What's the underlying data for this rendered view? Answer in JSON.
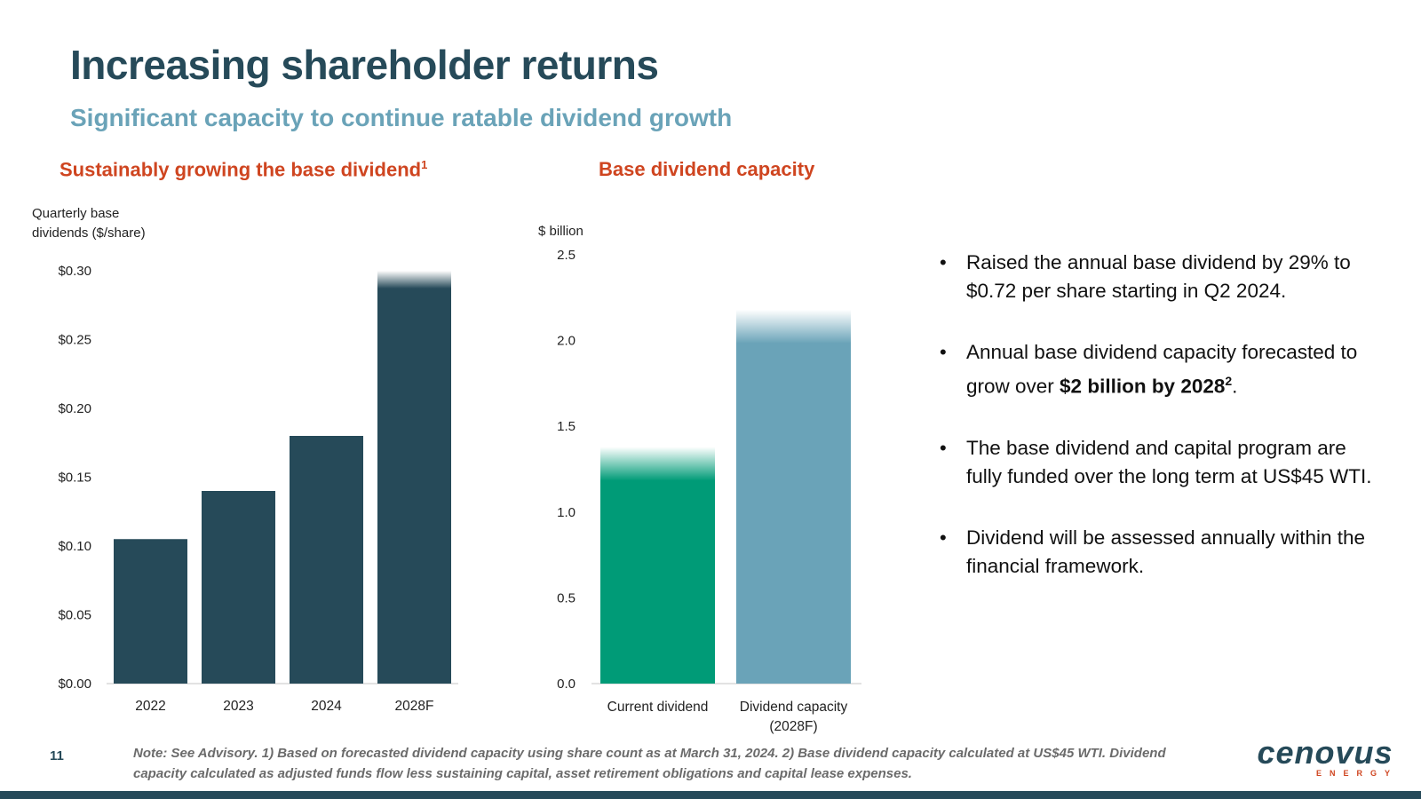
{
  "slide": {
    "title": "Increasing shareholder returns",
    "subtitle": "Significant capacity to continue ratable dividend growth",
    "page_number": "11"
  },
  "chart_data": [
    {
      "type": "bar",
      "title": "Sustainably growing the base dividend",
      "title_superscript": "1",
      "ylabel_lines": [
        "Quarterly base",
        "dividends ($/share)"
      ],
      "categories": [
        "2022",
        "2023",
        "2024",
        "2028F"
      ],
      "values": [
        0.105,
        0.14,
        0.18,
        0.3
      ],
      "ylim": [
        0,
        0.3
      ],
      "yticks": [
        "$0.00",
        "$0.05",
        "$0.10",
        "$0.15",
        "$0.20",
        "$0.25",
        "$0.30"
      ],
      "ytick_values": [
        0,
        0.05,
        0.1,
        0.15,
        0.2,
        0.25,
        0.3
      ],
      "bar_colors": [
        "#264a59",
        "#264a59",
        "#264a59",
        "#264a59"
      ],
      "faded_top": [
        false,
        false,
        false,
        true
      ],
      "grid": false
    },
    {
      "type": "bar",
      "title": "Base dividend capacity",
      "ylabel": "$ billion",
      "categories": [
        "Current dividend",
        "Dividend capacity (2028F)"
      ],
      "category_lines": [
        [
          "Current dividend"
        ],
        [
          "Dividend capacity",
          "(2028F)"
        ]
      ],
      "values": [
        1.38,
        2.18
      ],
      "ylim": [
        0,
        2.5
      ],
      "yticks": [
        "0.0",
        "0.5",
        "1.0",
        "1.5",
        "2.0",
        "2.5"
      ],
      "ytick_values": [
        0,
        0.5,
        1.0,
        1.5,
        2.0,
        2.5
      ],
      "bar_colors": [
        "#009b77",
        "#6aa3b8"
      ],
      "faded_top": [
        true,
        true
      ],
      "grid": false
    }
  ],
  "bullets": [
    {
      "text": "Raised the annual base dividend by 29% to $0.72 per share starting in Q2 2024.",
      "bold": "",
      "after": "",
      "sup": ""
    },
    {
      "text": "Annual base dividend capacity forecasted to grow over ",
      "bold": "$2 billion by 2028",
      "sup": "2",
      "after": "."
    },
    {
      "text": "The base dividend and capital program are fully funded over the long term at US$45 WTI.",
      "bold": "",
      "after": "",
      "sup": ""
    },
    {
      "text": "Dividend will be assessed annually within the financial framework.",
      "bold": "",
      "after": "",
      "sup": ""
    }
  ],
  "note": "Note: See Advisory. 1) Based on forecasted dividend capacity using share count as at March 31, 2024. 2) Base dividend capacity calculated at US$45 WTI. Dividend capacity calculated as adjusted funds flow less sustaining capital, asset retirement obligations and capital lease expenses.",
  "logo": {
    "word": "cenovus",
    "sub": "ENERGY"
  },
  "colors": {
    "navy": "#264a59",
    "light_blue": "#6aa3b8",
    "orange": "#cf4520",
    "green": "#009b77"
  }
}
